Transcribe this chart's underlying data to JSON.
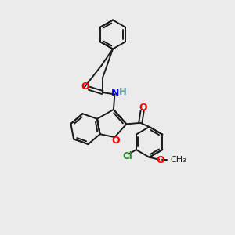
{
  "bg_color": "#ebebeb",
  "bond_color": "#1a1a1a",
  "bond_width": 1.4,
  "figsize": [
    3.0,
    3.0
  ],
  "dpi": 100,
  "xlim": [
    0,
    10
  ],
  "ylim": [
    0,
    10
  ]
}
